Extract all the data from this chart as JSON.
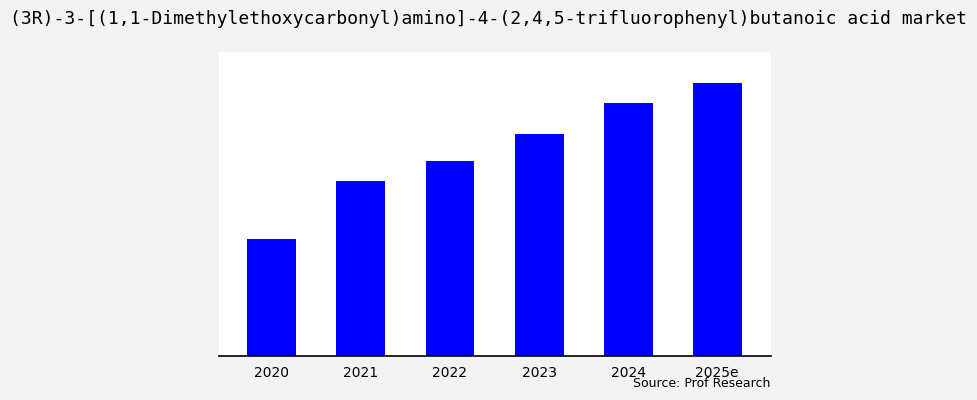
{
  "title": "(3R)-3-[(1,1-Dimethylethoxycarbonyl)amino]-4-(2,4,5-trifluorophenyl)butanoic acid market",
  "categories": [
    "2020",
    "2021",
    "2022",
    "2023",
    "2024",
    "2025e"
  ],
  "values": [
    3.0,
    4.5,
    5.0,
    5.7,
    6.5,
    7.0
  ],
  "bar_color": "#0000FF",
  "outer_background_color": "#f2f2f2",
  "inner_background_color": "#ffffff",
  "source_text": "Source: Prof Research",
  "ylim": [
    0,
    7.8
  ],
  "title_fontsize": 13,
  "tick_fontsize": 10,
  "source_fontsize": 9
}
